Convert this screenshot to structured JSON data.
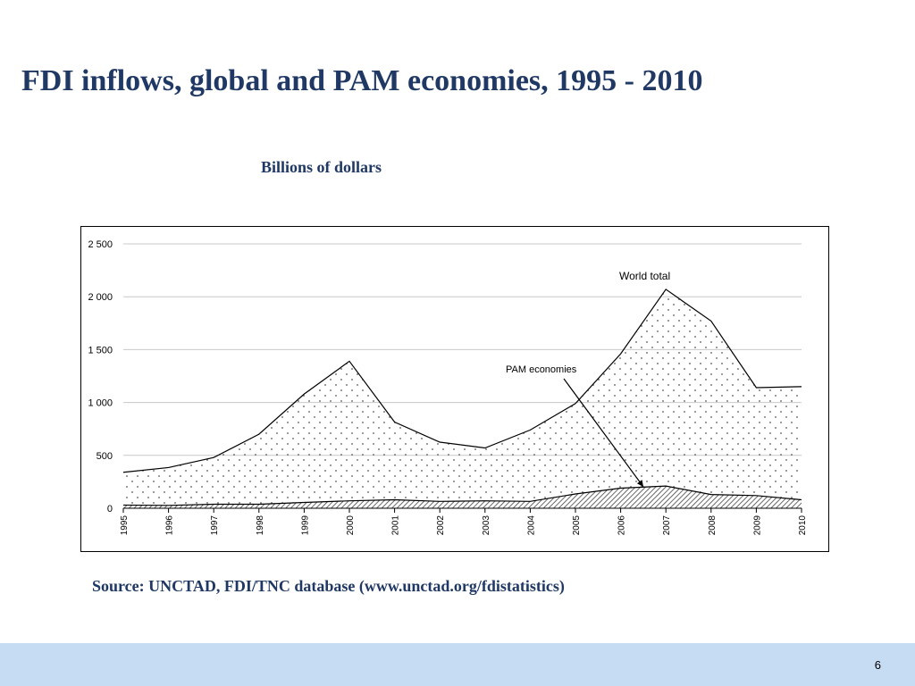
{
  "slide": {
    "title": "FDI inflows, global and PAM economies, 1995 - 2010",
    "source": "Source: UNCTAD, FDI/TNC database (www.unctad.org/fdistatistics)",
    "page_number": "6"
  },
  "colors": {
    "title_text": "#1f3864",
    "footer_bar": "#c5dcf3",
    "gridline": "#c8c8c8",
    "line": "#000000"
  },
  "chart_data": {
    "type": "area",
    "title": "",
    "subtitle": "Billions of dollars",
    "xlabel": "",
    "ylabel": "",
    "x": [
      "1995",
      "1996",
      "1997",
      "1998",
      "1999",
      "2000",
      "2001",
      "2002",
      "2003",
      "2004",
      "2005",
      "2006",
      "2007",
      "2008",
      "2009",
      "2010"
    ],
    "series": [
      {
        "name": "World total",
        "fill": "dotted",
        "values": [
          340,
          385,
          480,
          700,
          1080,
          1390,
          815,
          625,
          570,
          740,
          990,
          1460,
          2070,
          1770,
          1140,
          1150
        ]
      },
      {
        "name": "PAM economies",
        "fill": "hatched",
        "values": [
          30,
          27,
          38,
          38,
          55,
          70,
          80,
          65,
          70,
          65,
          135,
          190,
          210,
          130,
          120,
          80
        ]
      }
    ],
    "ylim": [
      0,
      2500
    ],
    "yticks": [
      0,
      500,
      1000,
      1500,
      2000,
      2500
    ],
    "ytick_labels": [
      "0",
      "500",
      "1 000",
      "1 500",
      "2 000",
      "2 500"
    ],
    "grid": true,
    "annotations": [
      {
        "text": "World total",
        "points_to_series": "World total",
        "x": "2007",
        "y": 2200
      },
      {
        "text": "PAM economies",
        "points_to_series": "PAM economies",
        "x": "2006.5",
        "y": 1300
      }
    ]
  }
}
